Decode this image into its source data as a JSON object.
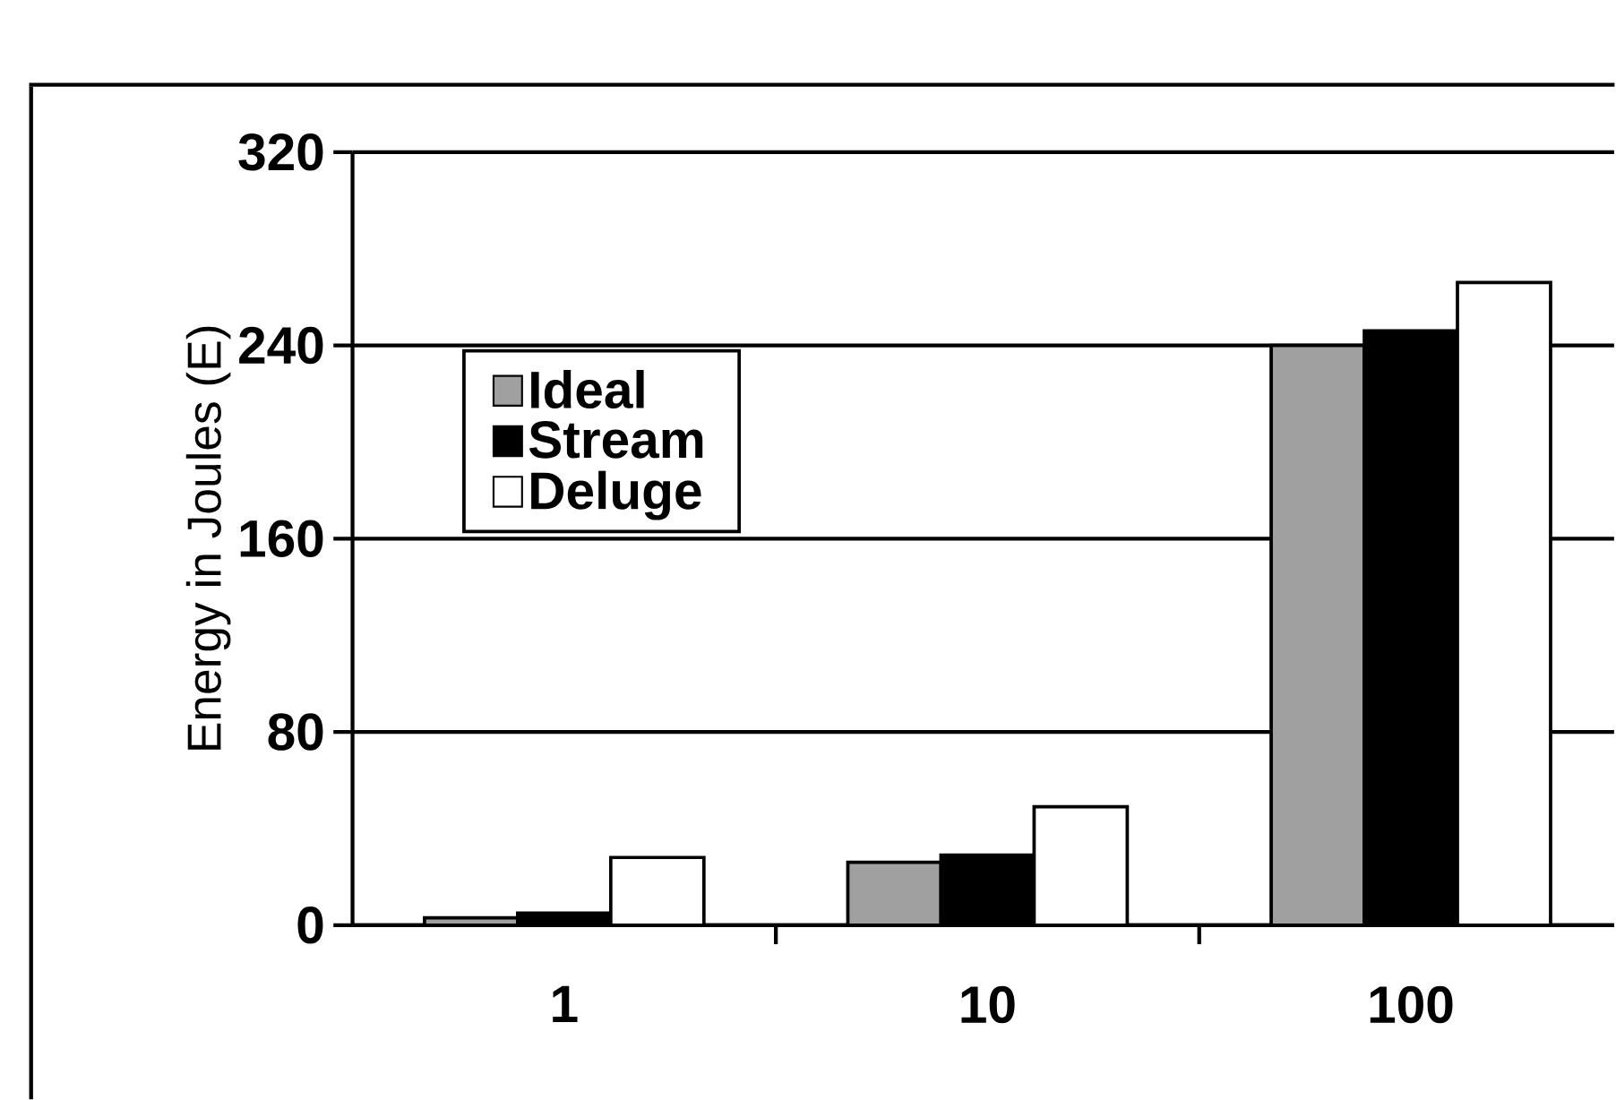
{
  "chart_data": {
    "type": "bar",
    "ylabel": "Energy in Joules (E)",
    "categories": [
      "1",
      "10",
      "100"
    ],
    "series": [
      {
        "name": "Ideal",
        "color": "#a0a0a0",
        "values": [
          3,
          26,
          240
        ]
      },
      {
        "name": "Stream",
        "color": "#000000",
        "values": [
          5,
          29,
          246
        ]
      },
      {
        "name": "Deluge",
        "color": "#ffffff",
        "values": [
          28,
          49,
          266
        ]
      }
    ],
    "ylim": [
      0,
      320
    ],
    "yticks": [
      0,
      80,
      160,
      240,
      320
    ],
    "grid": "y",
    "legend": "top left"
  }
}
